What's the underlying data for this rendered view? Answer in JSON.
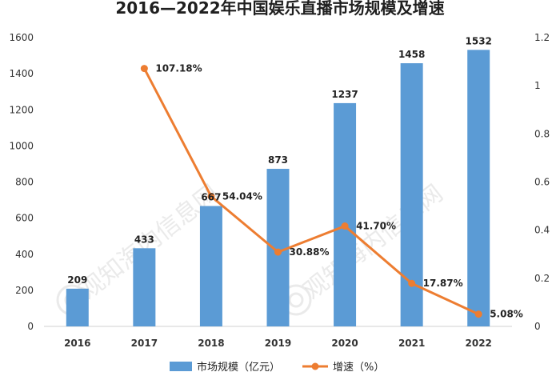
{
  "chart_data": {
    "type": "bar",
    "title": "2016—2022年中国娱乐直播市场规模及增速",
    "categories": [
      "2016",
      "2017",
      "2018",
      "2019",
      "2020",
      "2021",
      "2022"
    ],
    "series": [
      {
        "name": "市场规模（亿元）",
        "type": "bar",
        "axis": "left",
        "color": "#5b9bd5",
        "values": [
          209,
          433,
          667,
          873,
          1237,
          1458,
          1532
        ],
        "labels": [
          "209",
          "433",
          "667",
          "873",
          "1237",
          "1458",
          "1532"
        ]
      },
      {
        "name": "增速（%）",
        "type": "line",
        "axis": "right",
        "color": "#ed7d31",
        "values": [
          null,
          1.0718,
          0.5404,
          0.3088,
          0.417,
          0.1787,
          0.0508
        ],
        "labels": [
          "",
          "107.18%",
          "54.04%",
          "30.88%",
          "41.70%",
          "17.87%",
          "5.08%"
        ]
      }
    ],
    "ylim": [
      0,
      1600
    ],
    "yticks": [
      "0",
      "200",
      "400",
      "600",
      "800",
      "1000",
      "1200",
      "1400",
      "1600"
    ],
    "y2lim": [
      0,
      1.2
    ],
    "y2ticks": [
      "0",
      "0.2",
      "0.4",
      "0.6",
      "0.8",
      "1",
      "1.2"
    ],
    "grid": false,
    "legend_position": "bottom"
  },
  "watermark": {
    "text": "观知海内信息网",
    "icon": "watermark-logo-icon"
  }
}
